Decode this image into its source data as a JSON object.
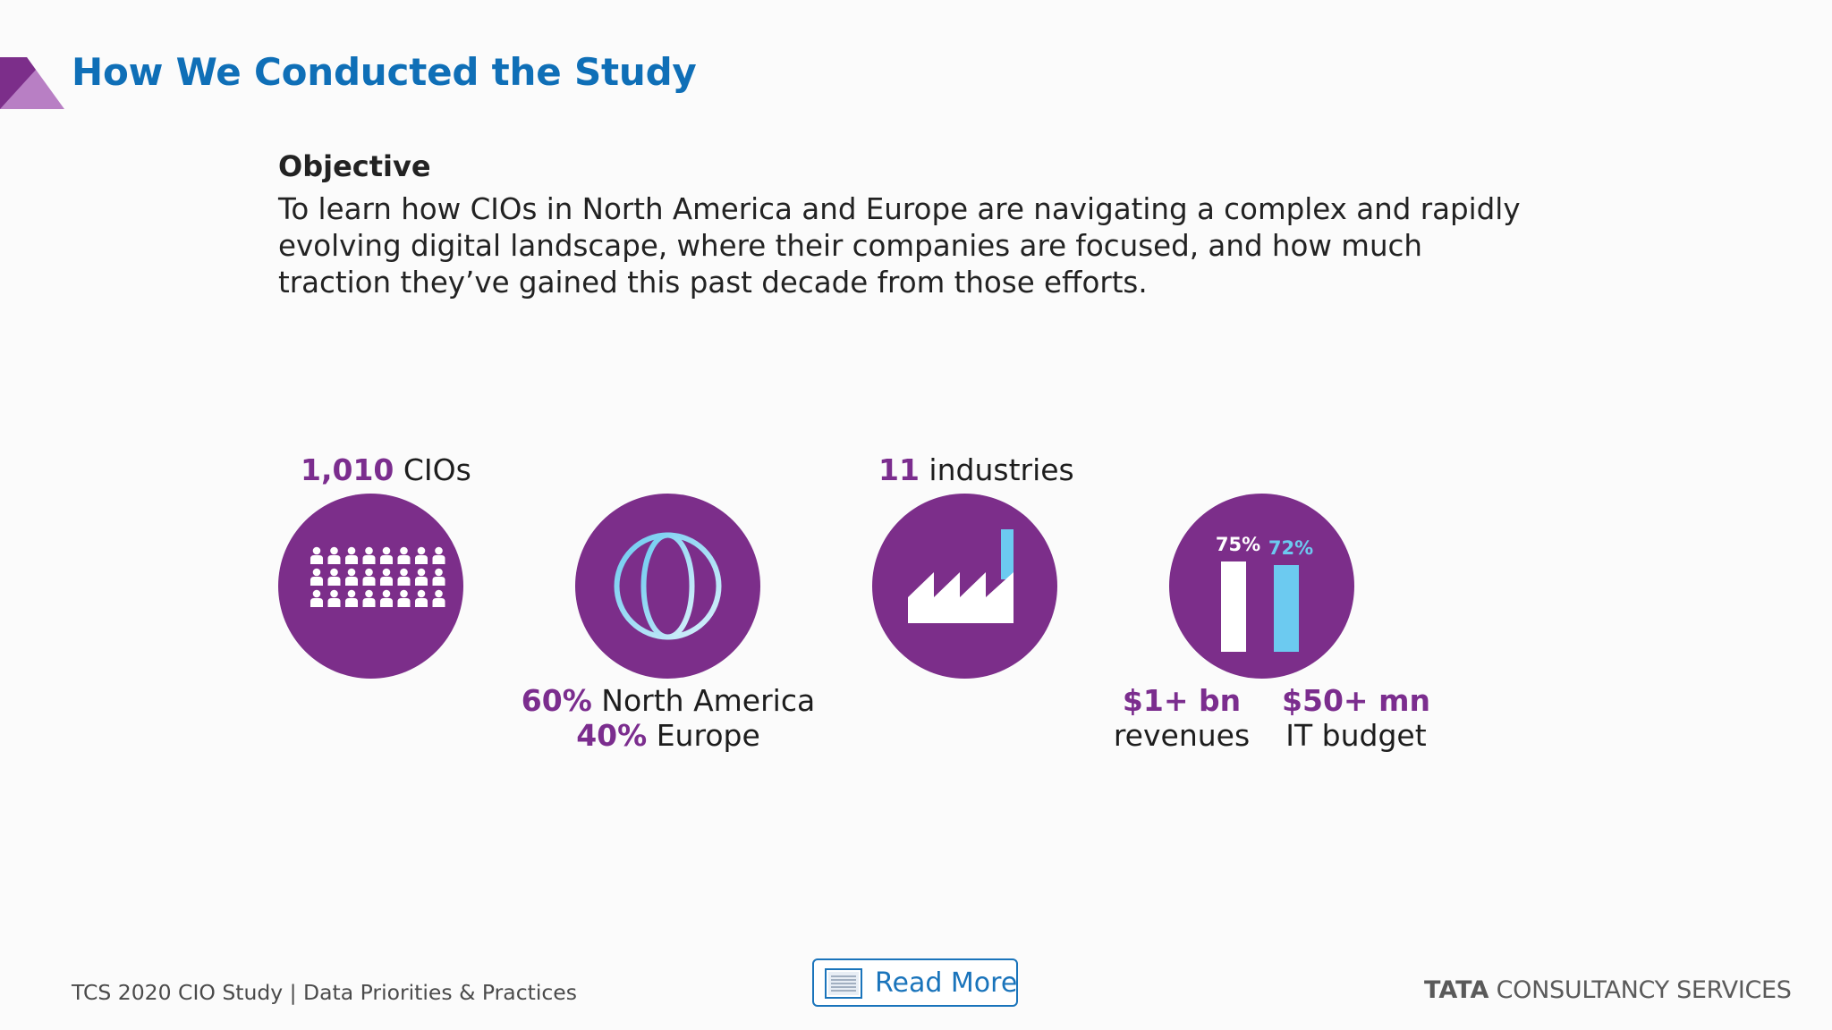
{
  "header": {
    "title": "How We Conducted the Study"
  },
  "objective": {
    "heading": "Objective",
    "text": "To learn how CIOs in North America and Europe are navigating a complex and rapidly evolving digital landscape, where their companies are focused, and how much traction they’ve gained this past decade from those efforts."
  },
  "stats": {
    "cios": {
      "number": "1,010",
      "label": " CIOs"
    },
    "industries": {
      "number": "11",
      "label": " industries"
    },
    "regions": [
      {
        "percent": "60%",
        "label": " North America"
      },
      {
        "percent": "40%",
        "label": " Europe"
      }
    ],
    "revenue": {
      "bar_label": "75%",
      "value": "$1+ bn",
      "label": "revenues",
      "fraction": 0.75
    },
    "budget": {
      "bar_label": "72%",
      "value": "$50+ mn",
      "label": "IT budget",
      "fraction": 0.72
    }
  },
  "icons": {
    "people": "people-grid-icon",
    "globe": "globe-icon",
    "factory": "factory-icon",
    "bars": "bar-chart-icon",
    "document": "document-icon"
  },
  "colors": {
    "purple": "#7c2e8a",
    "title_blue": "#0f6fb7",
    "light_blue": "#6ccaf0"
  },
  "read_more": {
    "label": "Read More"
  },
  "footer": {
    "left": "TCS 2020 CIO Study | Data Priorities & Practices",
    "brand_bold": "TATA",
    "brand_rest": " CONSULTANCY SERVICES"
  }
}
